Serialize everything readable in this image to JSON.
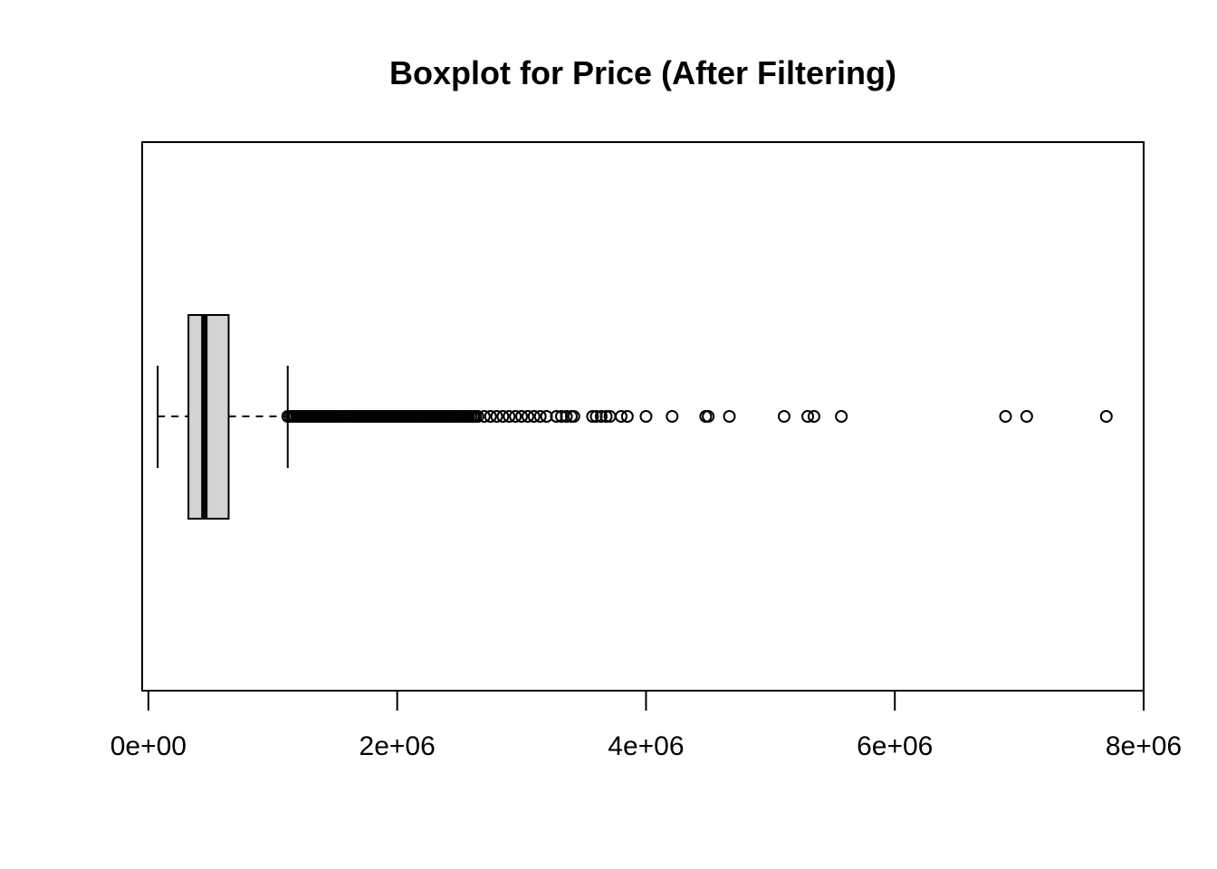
{
  "chart_data": {
    "type": "boxplot",
    "orientation": "horizontal",
    "title": "Boxplot for Price (After Filtering)",
    "xlabel": "",
    "ylabel": "",
    "xlim": [
      -50000,
      8000000
    ],
    "x_ticks": [
      0,
      2000000,
      4000000,
      6000000,
      8000000
    ],
    "x_tick_labels": [
      "0e+00",
      "2e+06",
      "4e+06",
      "6e+06",
      "8e+06"
    ],
    "grid": false,
    "box": {
      "whisker_low": 75000,
      "q1": 322000,
      "median": 450000,
      "q3": 645000,
      "whisker_high": 1120000,
      "fill": "#d3d3d3"
    },
    "outliers_dense_range": [
      1120000,
      2650000
    ],
    "outliers": [
      2700000,
      2750000,
      2800000,
      2850000,
      2900000,
      2950000,
      3000000,
      3050000,
      3100000,
      3150000,
      3200000,
      3280000,
      3320000,
      3360000,
      3400000,
      3420000,
      3570000,
      3600000,
      3640000,
      3680000,
      3710000,
      3800000,
      3850000,
      4000000,
      4210000,
      4480000,
      4500000,
      4670000,
      5110000,
      5300000,
      5350000,
      5570000,
      6890000,
      7060000,
      7700000
    ]
  }
}
